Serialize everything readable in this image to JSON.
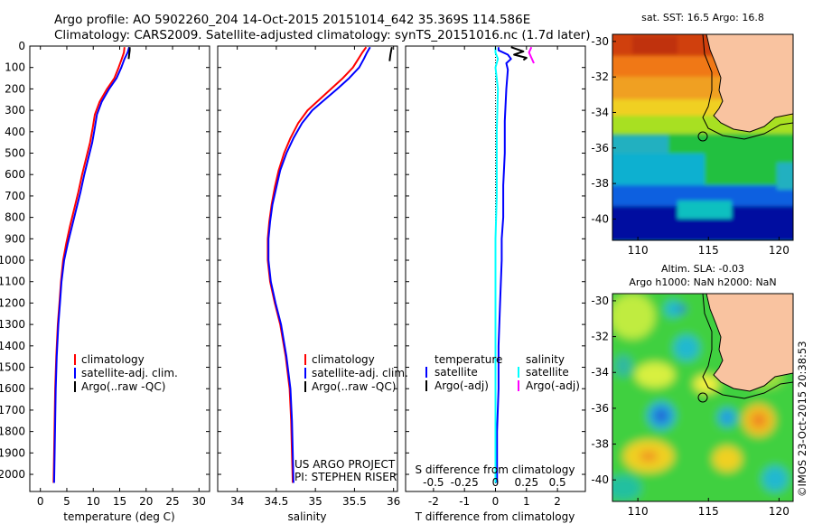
{
  "header": {
    "line1": "Argo profile: AO 5902260_204 14-Oct-2015 20151014_642 35.369S 114.586E",
    "line2": "Climatology: CARS2009. Satellite-adjusted climatology: synTS_20151016.nc (1.7d later)"
  },
  "colors": {
    "climatology": "#ff0000",
    "satellite": "#0000ff",
    "argo": "#000000",
    "salinity_satellite": "#00ffff",
    "salinity_argo": "#ff00ff",
    "land": "#f9c3a0"
  },
  "chart_data": [
    {
      "type": "line",
      "xlabel": "temperature (deg C)",
      "ylabel": "",
      "xlim": [
        -2,
        32
      ],
      "ylim": [
        2080,
        0
      ],
      "xticks": [
        "0",
        "5",
        "10",
        "15",
        "20",
        "25",
        "30"
      ],
      "yticks": [
        "0",
        "100",
        "200",
        "300",
        "400",
        "500",
        "600",
        "700",
        "800",
        "900",
        "1000",
        "1100",
        "1200",
        "1300",
        "1400",
        "1500",
        "1600",
        "1700",
        "1800",
        "1900",
        "2000"
      ],
      "legend": [
        "climatology",
        "satellite-adj. clim.",
        "Argo(..raw -QC)"
      ],
      "series": [
        {
          "name": "climatology",
          "x": [
            15.9,
            15.8,
            15.4,
            14.8,
            14.0,
            12.6,
            11.2,
            10.3,
            9.9,
            9.4,
            8.7,
            7.9,
            7.2,
            6.4,
            5.6,
            4.9,
            4.3,
            3.9,
            3.6,
            3.3,
            3.0,
            2.8,
            2.7,
            2.6,
            2.5
          ],
          "y": [
            5,
            30,
            60,
            100,
            150,
            200,
            260,
            320,
            380,
            450,
            520,
            600,
            680,
            760,
            840,
            920,
            1000,
            1100,
            1200,
            1300,
            1450,
            1600,
            1750,
            1900,
            2040
          ]
        },
        {
          "name": "satellite-adj. clim.",
          "x": [
            16.8,
            16.5,
            15.9,
            15.3,
            14.4,
            13.0,
            11.6,
            10.7,
            10.3,
            9.8,
            9.1,
            8.3,
            7.6,
            6.8,
            6.0,
            5.2,
            4.5,
            4.0,
            3.7,
            3.4,
            3.1,
            2.9,
            2.8,
            2.7,
            2.6
          ],
          "y": [
            5,
            30,
            60,
            100,
            150,
            200,
            260,
            320,
            380,
            450,
            520,
            600,
            680,
            760,
            840,
            920,
            1000,
            1100,
            1200,
            1300,
            1450,
            1600,
            1750,
            1900,
            2040
          ]
        },
        {
          "name": "Argo(..raw -QC)",
          "x": [
            16.9,
            16.9,
            16.8,
            16.7
          ],
          "y": [
            5,
            20,
            40,
            60
          ]
        }
      ]
    },
    {
      "type": "line",
      "xlabel": "salinity",
      "ylabel": "",
      "xlim": [
        33.75,
        36.05
      ],
      "ylim": [
        2080,
        0
      ],
      "xticks": [
        "34",
        "34.5",
        "35",
        "35.5",
        "36"
      ],
      "legend": [
        "climatology",
        "satellite-adj. clim.",
        "Argo(..raw -QC)"
      ],
      "series": [
        {
          "name": "climatology",
          "x": [
            35.65,
            35.6,
            35.55,
            35.48,
            35.35,
            35.2,
            35.05,
            34.9,
            34.78,
            34.68,
            34.6,
            34.53,
            34.48,
            34.44,
            34.41,
            34.39,
            34.39,
            34.42,
            34.48,
            34.55,
            34.62,
            34.67,
            34.69,
            34.7,
            34.71
          ],
          "y": [
            5,
            30,
            60,
            100,
            150,
            200,
            250,
            300,
            360,
            430,
            500,
            580,
            660,
            740,
            820,
            900,
            1000,
            1100,
            1200,
            1300,
            1450,
            1600,
            1750,
            1900,
            2040
          ]
        },
        {
          "name": "satellite-adj. clim.",
          "x": [
            35.7,
            35.66,
            35.62,
            35.56,
            35.43,
            35.28,
            35.12,
            34.96,
            34.83,
            34.72,
            34.63,
            34.55,
            34.5,
            34.45,
            34.42,
            34.4,
            34.4,
            34.43,
            34.49,
            34.56,
            34.63,
            34.68,
            34.7,
            34.71,
            34.72
          ],
          "y": [
            5,
            30,
            60,
            100,
            150,
            200,
            250,
            300,
            360,
            430,
            500,
            580,
            660,
            740,
            820,
            900,
            1000,
            1100,
            1200,
            1300,
            1450,
            1600,
            1750,
            1900,
            2040
          ]
        },
        {
          "name": "Argo(..raw -QC)",
          "x": [
            35.98,
            35.97,
            35.96,
            35.95
          ],
          "y": [
            5,
            20,
            40,
            70
          ]
        }
      ],
      "annotations": [
        "US ARGO PROJECT",
        "PI: STEPHEN RISER"
      ]
    },
    {
      "type": "line",
      "xlabel": "T difference from climatology",
      "x2label": "S difference from climatology",
      "xlim": [
        -2.9,
        2.9
      ],
      "x2lim": [
        -0.725,
        0.725
      ],
      "ylim": [
        2080,
        0
      ],
      "xticks": [
        "-2",
        "-1",
        "0",
        "1",
        "2"
      ],
      "x2ticks": [
        "-0.5",
        "-0.25",
        "0",
        "0.25",
        "0.5"
      ],
      "legend_groups": [
        {
          "title": "temperature",
          "items": [
            "satellite",
            "Argo(-adj)"
          ]
        },
        {
          "title": "salinity",
          "items": [
            "satellite",
            "Argo(-adj)"
          ]
        }
      ],
      "series": [
        {
          "name": "temperature satellite",
          "x": [
            0.1,
            0.1,
            0.4,
            0.5,
            0.35,
            0.4,
            0.35,
            0.3,
            0.3,
            0.25,
            0.25,
            0.2,
            0.2,
            0.15,
            0.1,
            0.1,
            0.05,
            0.05
          ],
          "y": [
            5,
            20,
            40,
            60,
            80,
            110,
            200,
            350,
            500,
            650,
            800,
            900,
            1000,
            1200,
            1400,
            1600,
            1800,
            2040
          ]
        },
        {
          "name": "temperature Argo(-adj)",
          "x": [
            0.5,
            0.9,
            0.6,
            1.0,
            0.9
          ],
          "y": [
            5,
            25,
            40,
            55,
            65
          ]
        },
        {
          "name": "salinity satellite",
          "x": [
            0.0,
            0.0,
            0.02,
            0.0,
            0.02,
            0.01,
            0.01,
            0.0,
            0.0,
            0.0,
            0.0
          ],
          "y": [
            5,
            30,
            60,
            100,
            200,
            400,
            700,
            900,
            1200,
            1600,
            2040
          ]
        },
        {
          "name": "salinity Argo(-adj)",
          "x": [
            0.29,
            0.27,
            0.29,
            0.31
          ],
          "y": [
            5,
            30,
            55,
            80
          ]
        }
      ]
    },
    {
      "type": "heatmap",
      "title": "sat. SST: 16.5 Argo: 16.8",
      "xticks": [
        "110",
        "115",
        "120"
      ],
      "yticks": [
        "-30",
        "-32",
        "-34",
        "-36",
        "-38",
        "-40"
      ],
      "xlim": [
        108.2,
        121
      ],
      "ylim": [
        -41.2,
        -29.6
      ],
      "marker": {
        "lon": 114.586,
        "lat": -35.369
      }
    },
    {
      "type": "heatmap",
      "title": "Altim. SLA: -0.03",
      "subtitle": "Argo h1000: NaN h2000: NaN",
      "xticks": [
        "110",
        "115",
        "120"
      ],
      "yticks": [
        "-30",
        "-32",
        "-34",
        "-36",
        "-38",
        "-40"
      ],
      "xlim": [
        108.2,
        121
      ],
      "ylim": [
        -41.2,
        -29.6
      ],
      "marker": {
        "lon": 114.586,
        "lat": -35.369
      }
    }
  ],
  "footer": {
    "credit": "©IMOS 23-Oct-2015 20:38:53"
  }
}
